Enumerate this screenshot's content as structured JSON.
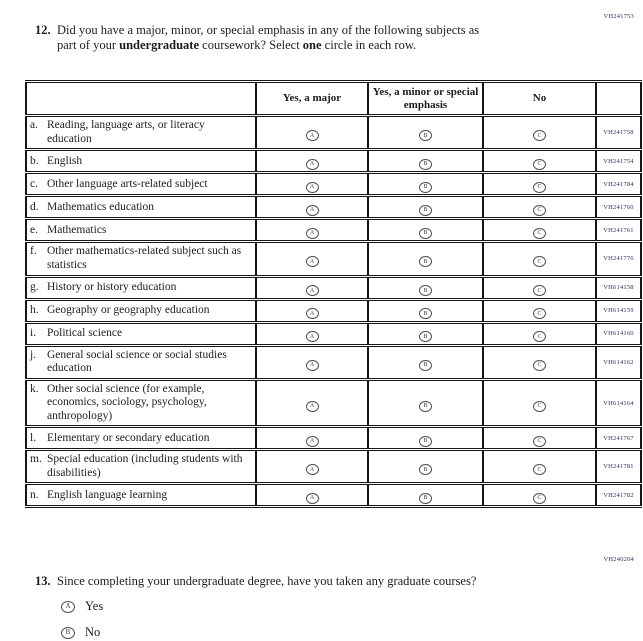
{
  "colors": {
    "text": "#1d1d1d",
    "border": "#161616",
    "code": "#2d2d5e"
  },
  "q12": {
    "code": "VH241753",
    "number": "12.",
    "line1": "Did you have a major, minor, or special emphasis in any of the following subjects as",
    "line2_pre": "part of your ",
    "line2_bold1": "undergraduate",
    "line2_mid": " coursework? Select ",
    "line2_bold2": "one",
    "line2_post": " circle in each row."
  },
  "table": {
    "headers": {
      "major": "Yes, a major",
      "minor": "Yes, a minor or special emphasis",
      "no": "No"
    },
    "options": [
      "A",
      "B",
      "C"
    ],
    "rows": [
      {
        "letter": "a.",
        "label": "Reading, language arts, or literacy education",
        "code": "VH241758"
      },
      {
        "letter": "b.",
        "label": "English",
        "code": "VH241754"
      },
      {
        "letter": "c.",
        "label": "Other language arts-related subject",
        "code": "VH241784"
      },
      {
        "letter": "d.",
        "label": "Mathematics education",
        "code": "VH241760"
      },
      {
        "letter": "e.",
        "label": "Mathematics",
        "code": "VH241761"
      },
      {
        "letter": "f.",
        "label": "Other mathematics-related subject such as statistics",
        "code": "VH241776"
      },
      {
        "letter": "g.",
        "label": "History or history education",
        "code": "VH614158"
      },
      {
        "letter": "h.",
        "label": "Geography or geography education",
        "code": "VH614159"
      },
      {
        "letter": "i.",
        "label": "Political science",
        "code": "VH614160"
      },
      {
        "letter": "j.",
        "label": "General social science or social studies education",
        "code": "VH614162"
      },
      {
        "letter": "k.",
        "label": "Other social science (for example, economics, sociology, psychology, anthropology)",
        "code": "VH614164"
      },
      {
        "letter": "l.",
        "label": "Elementary or secondary education",
        "code": "VH241767"
      },
      {
        "letter": "m.",
        "label": "Special education (including students with disabilities)",
        "code": "VH241781"
      },
      {
        "letter": "n.",
        "label": "English language learning",
        "code": "VH241782"
      }
    ]
  },
  "q13": {
    "code": "VH240204",
    "number": "13.",
    "text": "Since completing your undergraduate degree, have you taken any graduate courses?",
    "options": [
      {
        "letter": "A",
        "label": "Yes"
      },
      {
        "letter": "B",
        "label": "No"
      }
    ]
  }
}
